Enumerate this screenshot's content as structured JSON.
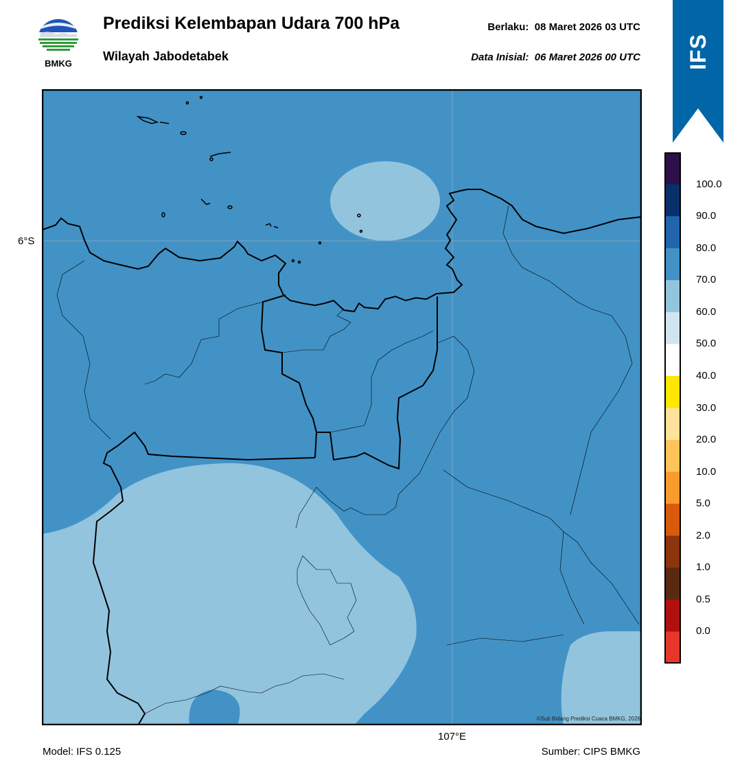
{
  "header": {
    "logo_text": "BMKG",
    "title": "Prediksi Kelembapan Udara 700 hPa",
    "subtitle": "Wilayah Jabodetabek",
    "valid_label": "Berlaku:",
    "valid_value": "08 Maret 2026 03 UTC",
    "init_label": "Data Inisial:",
    "init_value": "06 Maret 2026 00 UTC"
  },
  "badge": {
    "text": "IFS",
    "color": "#0066a8"
  },
  "map": {
    "lat_label": "6°S",
    "lon_label": "107°E",
    "credit": "©Sub Bidang Prediksi Cuaca BMKG, 2026",
    "base_color": "#4292c6",
    "light_color": "#92c4de"
  },
  "colorbar": {
    "labels": [
      "100.0",
      "90.0",
      "80.0",
      "70.0",
      "60.0",
      "50.0",
      "40.0",
      "30.0",
      "20.0",
      "10.0",
      "5.0",
      "2.0",
      "1.0",
      "0.5",
      "0.0"
    ],
    "colors_top_to_bottom": [
      "#2d0f4a",
      "#08306b",
      "#2166ac",
      "#4292c6",
      "#92c4de",
      "#d1e5f0",
      "#ffffff",
      "#ffe600",
      "#ffe29a",
      "#ffc35a",
      "#f89b2c",
      "#d95a0c",
      "#8c350c",
      "#5a2a10",
      "#b01010",
      "#e8372a"
    ]
  },
  "footer": {
    "model": "Model: IFS 0.125",
    "source": "Sumber: CIPS BMKG"
  }
}
